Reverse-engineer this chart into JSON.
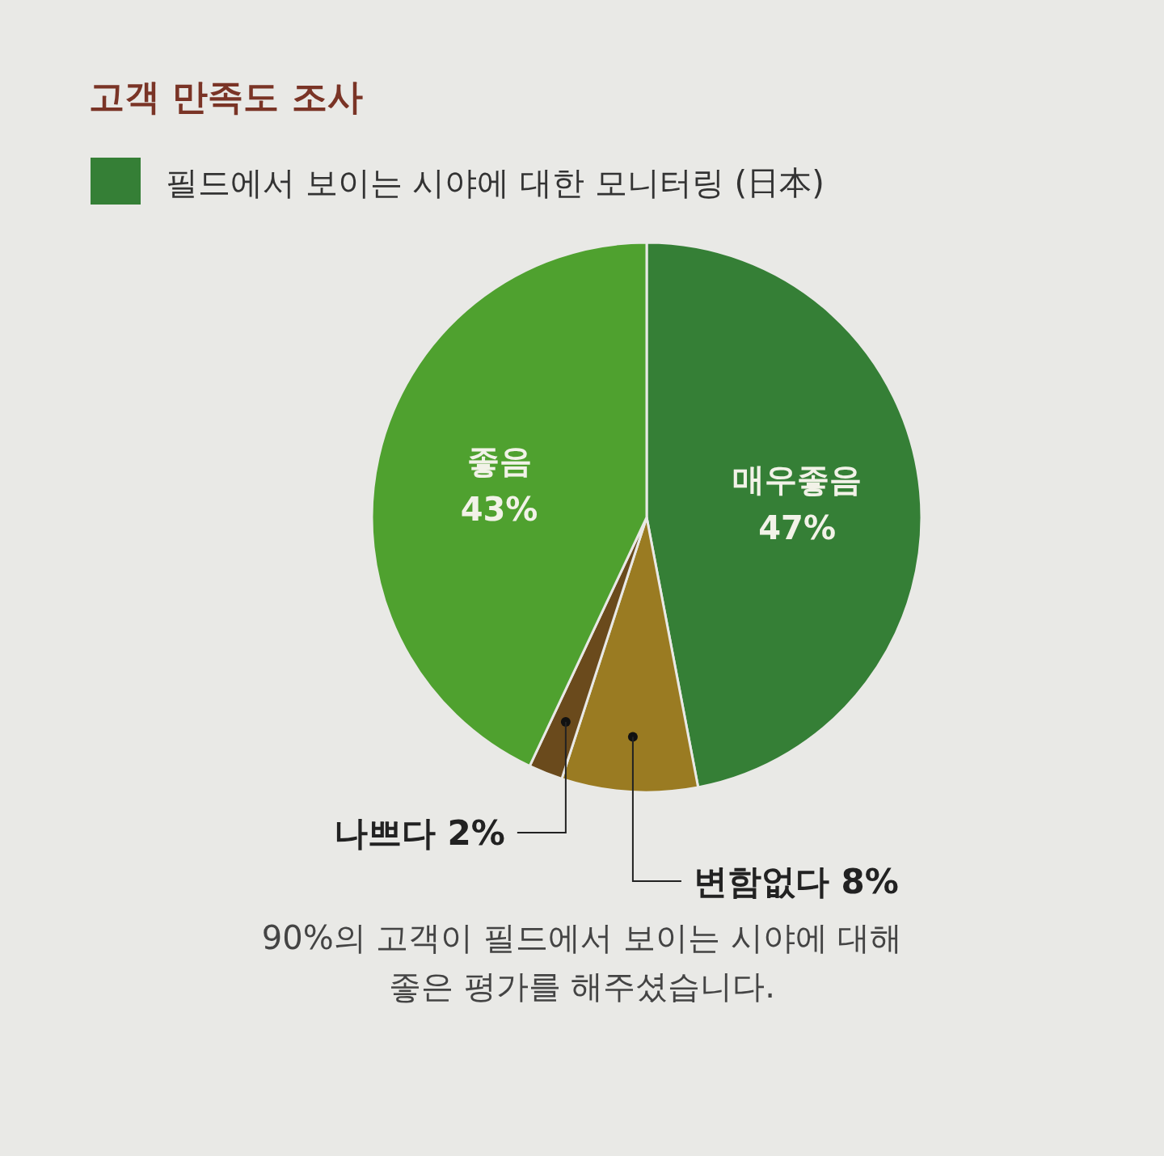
{
  "chart_data": {
    "type": "pie",
    "title": "고객 만족도 조사",
    "subtitle": "필드에서 보이는 시야에 대한 모니터링 (日本)",
    "categories": [
      "매우좋음",
      "변함없다",
      "나쁘다",
      "좋음"
    ],
    "values": [
      47,
      8,
      2,
      43
    ],
    "value_labels": [
      "47%",
      "8%",
      "2%",
      "43%"
    ],
    "colors": [
      "#357f36",
      "#9a7b22",
      "#6a4a1c",
      "#4fa12f"
    ],
    "annotations": [
      "90%의 고객이 필드에서 보이는 시야에 대해 좋은 평가를 해주셨습니다."
    ]
  }
}
